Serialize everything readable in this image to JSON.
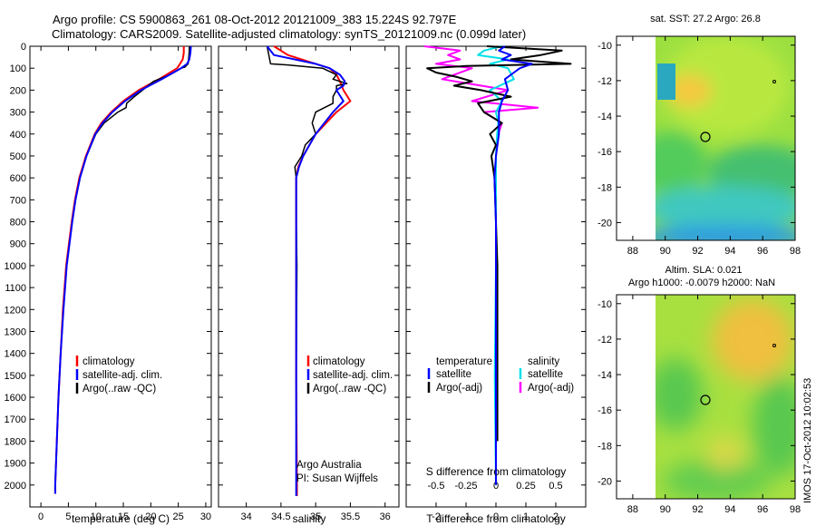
{
  "title": {
    "line1": "Argo profile: CS 5900863_261 08-Oct-2012 20121009_383 15.224S 92.797E",
    "line2": "Climatology: CARS2009. Satellite-adjusted climatology: synTS_20121009.nc (0.099d later)"
  },
  "side_stamp": "IMOS 17-Oct-2012 10:02:53",
  "colors": {
    "climatology": "#ff0000",
    "satellite": "#0000ff",
    "argo": "#000000",
    "sal_satellite": "#00e0e8",
    "sal_argo": "#ff00ff"
  },
  "chart_data": [
    {
      "type": "line",
      "id": "temperature",
      "xlabel": "temperature (deg C)",
      "ylim": [
        2100,
        0
      ],
      "xlim": [
        -2,
        31
      ],
      "xticks": [
        "0",
        "5",
        "10",
        "15",
        "20",
        "25",
        "30"
      ],
      "yticks": [
        "0",
        "100",
        "200",
        "300",
        "400",
        "500",
        "600",
        "700",
        "800",
        "900",
        "1000",
        "1100",
        "1200",
        "1300",
        "1400",
        "1500",
        "1600",
        "1700",
        "1800",
        "1900",
        "2000"
      ],
      "legend": [
        "climatology",
        "satellite-adj. clim.",
        "Argo(..raw -QC)"
      ],
      "series": [
        {
          "name": "climatology",
          "depth": [
            0,
            30,
            60,
            80,
            100,
            150,
            200,
            250,
            300,
            350,
            400,
            500,
            600,
            700,
            800,
            1000,
            1200,
            1400,
            1600,
            1800,
            2000,
            2040
          ],
          "values": [
            26,
            26,
            25.8,
            25.3,
            24.8,
            21.5,
            17.8,
            15,
            12.8,
            11,
            9.8,
            8.2,
            7,
            6.2,
            5.6,
            4.6,
            4,
            3.6,
            3.2,
            2.9,
            2.6,
            2.6
          ]
        },
        {
          "name": "satellite-adj. clim.",
          "depth": [
            0,
            30,
            60,
            80,
            100,
            150,
            200,
            250,
            300,
            350,
            400,
            500,
            600,
            700,
            800,
            1000,
            1200,
            1400,
            1600,
            1800,
            2000,
            2040
          ],
          "values": [
            27.3,
            27.2,
            27,
            26.6,
            25.5,
            22,
            18.2,
            15.3,
            13,
            11.2,
            9.9,
            8.3,
            7.1,
            6.3,
            5.7,
            4.7,
            4.1,
            3.6,
            3.2,
            2.9,
            2.6,
            2.6
          ]
        },
        {
          "name": "Argo(..raw -QC)",
          "depth": [
            0,
            20,
            50,
            80,
            95,
            100,
            130,
            160,
            180,
            200,
            230,
            260,
            280,
            300,
            350,
            400,
            500,
            600,
            700,
            800,
            1000,
            1200,
            1400,
            1600,
            1800,
            2000
          ],
          "values": [
            27,
            27,
            26.9,
            26.8,
            26.2,
            25.5,
            23.5,
            20.5,
            19.5,
            18.5,
            17,
            15.6,
            15.5,
            14,
            11.5,
            10,
            8.3,
            7.1,
            6.3,
            5.7,
            4.7,
            4.1,
            3.6,
            3.2,
            2.9,
            2.6
          ]
        }
      ]
    },
    {
      "type": "line",
      "id": "salinity",
      "xlabel": "salinity",
      "ylim": [
        2100,
        0
      ],
      "xlim": [
        33.6,
        36.2
      ],
      "xticks": [
        "34",
        "34.5",
        "35",
        "35.5",
        "36"
      ],
      "legend": [
        "climatology",
        "satellite-adj. clim.",
        "Argo(..raw -QC)"
      ],
      "annotation": [
        "Argo Australia",
        "PI: Susan Wijffels"
      ],
      "series": [
        {
          "name": "climatology",
          "depth": [
            0,
            40,
            80,
            100,
            130,
            160,
            200,
            250,
            300,
            400,
            500,
            550,
            600,
            800,
            1000,
            1500,
            2000,
            2050
          ],
          "values": [
            34.4,
            34.6,
            35.0,
            35.2,
            35.3,
            35.35,
            35.4,
            35.5,
            35.3,
            35.0,
            34.82,
            34.75,
            34.72,
            34.72,
            34.72,
            34.72,
            34.73,
            34.73
          ]
        },
        {
          "name": "satellite-adj. clim.",
          "depth": [
            0,
            40,
            80,
            100,
            130,
            160,
            180,
            200,
            250,
            300,
            400,
            500,
            550,
            600,
            800,
            1000,
            1500,
            2000,
            2050
          ],
          "values": [
            34.3,
            34.4,
            35.0,
            35.2,
            35.35,
            35.42,
            35.4,
            35.3,
            35.4,
            35.25,
            35.0,
            34.82,
            34.76,
            34.72,
            34.72,
            34.72,
            34.72,
            34.72,
            34.72
          ]
        },
        {
          "name": "Argo(..raw -QC)",
          "depth": [
            0,
            80,
            85,
            100,
            130,
            150,
            170,
            180,
            200,
            230,
            260,
            300,
            350,
            400,
            450,
            500,
            550,
            600,
            800,
            1000,
            1500,
            1900
          ],
          "values": [
            34.3,
            34.35,
            34.6,
            35.1,
            35.3,
            35.25,
            35.45,
            35.3,
            35.3,
            35.25,
            35.25,
            35.0,
            34.95,
            35.0,
            34.85,
            34.8,
            34.7,
            34.72,
            34.72,
            34.73,
            34.72,
            34.72
          ]
        }
      ]
    },
    {
      "type": "line",
      "id": "differences",
      "xlabel": "T difference from climatology",
      "xlabel_top": "S difference from climatology",
      "ylim": [
        2100,
        0
      ],
      "xlim": [
        -3,
        3
      ],
      "xticks": [
        "-2",
        "-1",
        "0",
        "1",
        "2"
      ],
      "xticks_s": [
        "-0.5",
        "-0.25",
        "0",
        "0.25",
        "0.5"
      ],
      "legend_t_title": "temperature",
      "legend_s_title": "salinity",
      "legend_t": [
        "satellite",
        "Argo(-adj)"
      ],
      "legend_s": [
        "satellite",
        "Argo(-adj)"
      ],
      "series": [
        {
          "name": "satellite",
          "depth": [
            0,
            20,
            40,
            60,
            80,
            100,
            120,
            150,
            200,
            250,
            300,
            400,
            500,
            600,
            800,
            1000,
            1500,
            2000
          ],
          "values": [
            0.3,
            0.1,
            0.5,
            0.2,
            1.2,
            0.8,
            0.6,
            0.3,
            0.4,
            0.2,
            0.1,
            0.1,
            0,
            -0.05,
            0,
            0,
            0,
            0
          ]
        },
        {
          "name": "Argo(-adj)",
          "depth": [
            0,
            20,
            40,
            60,
            80,
            90,
            100,
            120,
            140,
            160,
            180,
            200,
            230,
            260,
            300,
            350,
            400,
            450,
            500,
            600,
            800,
            1000,
            1500,
            1800
          ],
          "values": [
            -0.3,
            2.2,
            1.5,
            0.5,
            2.5,
            -1,
            -2.3,
            -2.0,
            -1.3,
            -0.8,
            -1.4,
            -0.5,
            0.5,
            -0.6,
            -0.4,
            0.2,
            -0.2,
            0,
            -0.15,
            -0.05,
            0,
            0.05,
            0.05,
            0.05
          ]
        },
        {
          "name": "salinity satellite",
          "depth": [
            0,
            20,
            40,
            60,
            80,
            100,
            150,
            200,
            250,
            300,
            350,
            400,
            500,
            600,
            800,
            1000,
            1500,
            2000
          ],
          "values": [
            0.05,
            -0.1,
            -0.15,
            0.1,
            -0.05,
            0.1,
            0.15,
            -0.05,
            0.05,
            0,
            0.02,
            0.01,
            0,
            0,
            0,
            0,
            -0.01,
            0
          ]
        },
        {
          "name": "salinity Argo(-adj)",
          "depth": [
            0,
            20,
            40,
            60,
            80,
            100,
            150,
            200,
            250,
            280,
            300,
            350,
            400,
            500,
            600,
            800,
            1000,
            1500
          ],
          "values": [
            -0.6,
            -0.3,
            -0.4,
            -0.3,
            -0.5,
            -0.2,
            -0.45,
            0.1,
            -0.2,
            0.35,
            -0.1,
            0.05,
            0.02,
            0,
            0,
            0,
            0,
            0
          ]
        }
      ]
    },
    {
      "type": "heatmap",
      "id": "sst_map",
      "title": "sat. SST: 27.2 Argo: 26.8",
      "xticks": [
        "88",
        "90",
        "92",
        "94",
        "96",
        "98"
      ],
      "yticks": [
        "-10",
        "-12",
        "-14",
        "-16",
        "-18",
        "-20"
      ],
      "xlim": [
        87,
        98
      ],
      "ylim": [
        -21,
        -9.5
      ],
      "marker": {
        "lon": 92.797,
        "lat": -15.224
      }
    },
    {
      "type": "heatmap",
      "id": "sla_map",
      "title": "Altim. SLA: 0.021",
      "subtitle": "Argo h1000: -0.0079 h2000: NaN",
      "xticks": [
        "88",
        "90",
        "92",
        "94",
        "96",
        "98"
      ],
      "yticks": [
        "-10",
        "-12",
        "-14",
        "-16",
        "-18",
        "-20"
      ],
      "xlim": [
        87,
        98
      ],
      "ylim": [
        -21,
        -9.5
      ],
      "marker": {
        "lon": 92.797,
        "lat": -15.224
      }
    }
  ]
}
